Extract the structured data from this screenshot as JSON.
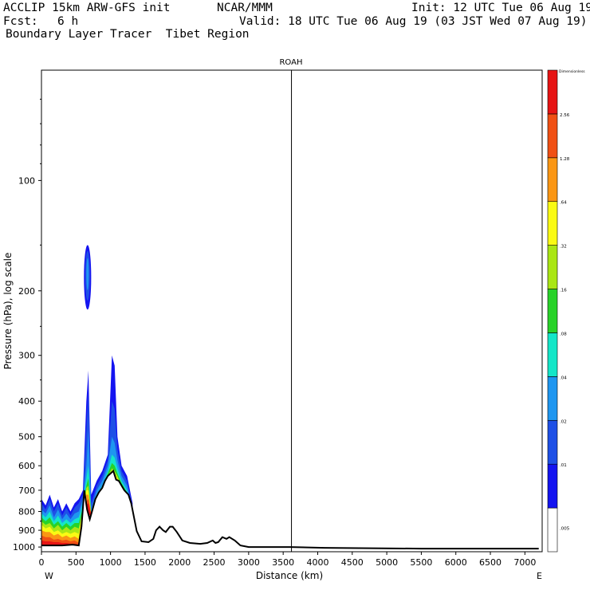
{
  "header": {
    "model": "ACCLIP 15km ARW-GFS init",
    "org": "NCAR/MMM",
    "init": "Init: 12 UTC Tue 06 Aug 19",
    "fcst_label": "Fcst:",
    "fcst_value": "6 h",
    "valid": "Valid: 18 UTC Tue 06 Aug 19 (03 JST Wed 07 Aug 19)",
    "title": "Boundary Layer Tracer  Tibet Region"
  },
  "chart_data": {
    "type": "heatmap",
    "title": "ROAH",
    "xlabel": "Distance (km)",
    "ylabel": "Pressure (hPa), log scale",
    "x_ticks": [
      "0",
      "500",
      "1000",
      "1500",
      "2000",
      "2500",
      "3000",
      "3500",
      "4000",
      "4500",
      "5000",
      "5500",
      "6000",
      "6500",
      "7000"
    ],
    "x_range": [
      0,
      7250
    ],
    "y_ticks": [
      "100",
      "200",
      "300",
      "400",
      "500",
      "600",
      "700",
      "800",
      "900",
      "1000"
    ],
    "y_range_hPa": [
      1030,
      50
    ],
    "end_left": "W",
    "end_right": "E",
    "marker_line_km": 3620,
    "colorbar": {
      "title": "Dimensionless",
      "labels": [
        ".005",
        ".01",
        ".02",
        ".04",
        ".08",
        ".16",
        ".32",
        ".64",
        "1.28",
        "2.56"
      ],
      "colors": [
        "#ffffff",
        "#1414f0",
        "#1e50e6",
        "#1e96f0",
        "#14e6c8",
        "#28d228",
        "#aae614",
        "#fafa14",
        "#fa9614",
        "#f05014",
        "#e61414"
      ]
    },
    "terrain_profile": {
      "distance_km": [
        0,
        120,
        300,
        450,
        540,
        580,
        620,
        660,
        700,
        740,
        780,
        830,
        880,
        920,
        960,
        1000,
        1040,
        1080,
        1120,
        1160,
        1200,
        1260,
        1300,
        1380,
        1450,
        1550,
        1620,
        1660,
        1710,
        1760,
        1800,
        1860,
        1900,
        1960,
        2040,
        2150,
        2300,
        2400,
        2480,
        2520,
        2560,
        2620,
        2680,
        2720,
        2800,
        2880,
        3000,
        3600,
        4100,
        5500,
        7200
      ],
      "surface_pressure_hPa": [
        990,
        990,
        990,
        985,
        990,
        880,
        700,
        790,
        840,
        790,
        740,
        710,
        690,
        660,
        640,
        630,
        620,
        655,
        660,
        680,
        700,
        720,
        760,
        905,
        965,
        970,
        950,
        900,
        880,
        900,
        910,
        880,
        880,
        910,
        960,
        975,
        980,
        975,
        960,
        975,
        970,
        940,
        950,
        940,
        960,
        990,
        1000,
        1000,
        1005,
        1010,
        1010
      ]
    },
    "tracer_regions": [
      {
        "name": "upper-plume",
        "distance_km": [
          615,
          720
        ],
        "pressure_hPa": [
          150,
          225
        ],
        "max_value": 0.04
      },
      {
        "name": "main-plume",
        "distance_km": [
          500,
          1300
        ],
        "pressure_hPa": [
          270,
          1000
        ],
        "max_value": 2.56
      },
      {
        "name": "boundary-layer-west",
        "distance_km": [
          0,
          600
        ],
        "pressure_hPa": [
          700,
          1000
        ],
        "max_value": 2.56
      }
    ]
  }
}
